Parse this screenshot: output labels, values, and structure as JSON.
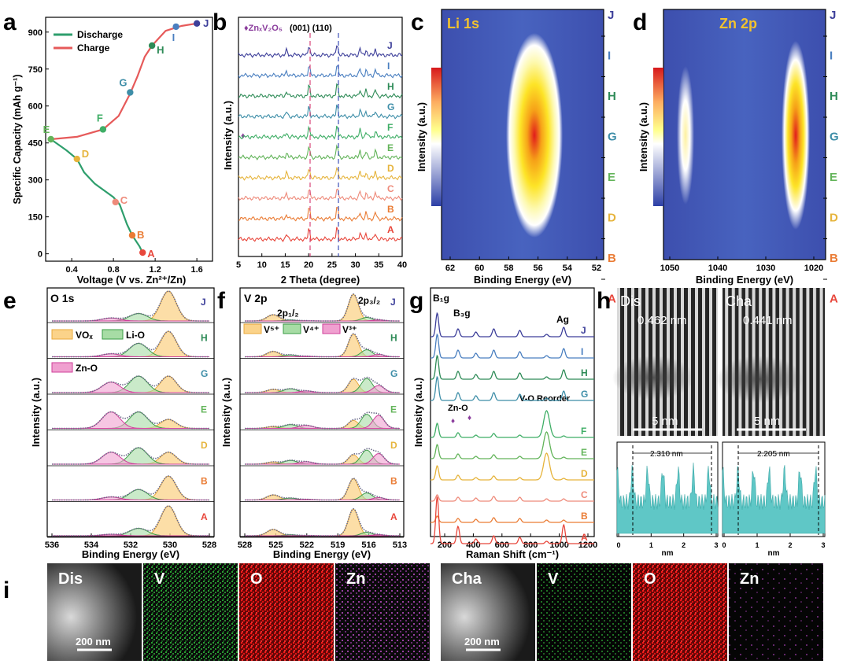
{
  "panels": {
    "a": {
      "letter": "a",
      "ylabel": "Specific Capacity (mAh g⁻¹)",
      "xlabel": "Voltage (V vs. Zn²⁺/Zn)",
      "legend": [
        "Discharge",
        "Charge"
      ],
      "yticks": [
        "0",
        "150",
        "300",
        "450",
        "600",
        "750",
        "900"
      ],
      "xticks": [
        "0.4",
        "0.8",
        "1.2",
        "1.6"
      ]
    },
    "b": {
      "letter": "b",
      "legend": "♦ZnₓV₂O₅",
      "peaks": "(001) (110)",
      "ylabel": "Intensity (a.u.)",
      "xlabel": "2 Theta (degree)",
      "xticks": [
        "5",
        "10",
        "15",
        "20",
        "25",
        "30",
        "35",
        "40"
      ]
    },
    "c": {
      "letter": "c",
      "title": "Li 1s",
      "ylabel": "Intensity (a.u.)",
      "xlabel": "Binding Energy (eV)",
      "xticks": [
        "62",
        "60",
        "58",
        "56",
        "54",
        "52"
      ]
    },
    "d": {
      "letter": "d",
      "title": "Zn 2p",
      "ylabel": "Intensity (a.u.)",
      "xlabel": "Binding Energy (eV)",
      "xticks": [
        "1050",
        "1040",
        "1030",
        "1020"
      ]
    },
    "e": {
      "letter": "e",
      "title": "O 1s",
      "legend": [
        "VOₓ",
        "Li-O",
        "Zn-O"
      ],
      "ylabel": "Intensity (a.u.)",
      "xlabel": "Binding Energy (eV)",
      "xticks": [
        "536",
        "534",
        "532",
        "530",
        "528"
      ]
    },
    "f": {
      "letter": "f",
      "title": "V 2p",
      "sub1": "2p₁/₂",
      "sub2": "2p₃/₂",
      "legend": [
        "V⁵⁺",
        "V⁴⁺",
        "V³⁺"
      ],
      "ylabel": "Intensity (a.u.)",
      "xlabel": "Binding Energy (eV)",
      "xticks": [
        "528",
        "525",
        "522",
        "519",
        "516",
        "513"
      ]
    },
    "g": {
      "letter": "g",
      "peak1": "B₁g",
      "peak2": "B₃g",
      "peak3": "Ag",
      "znoLabel": "Zn-O",
      "voLabel": "V-O Reorder",
      "ylabel": "Intensity (a.u.)",
      "xlabel": "Raman Shift (cm⁻¹)",
      "xticks": [
        "200",
        "400",
        "600",
        "800",
        "1000",
        "1200"
      ]
    },
    "h": {
      "letter": "h",
      "dis": "Dis",
      "cha": "Cha",
      "dspacing1": "0.462 nm",
      "dspacing2": "0.441 nm",
      "scale": "5 nm",
      "profile1": "2.310 nm",
      "profile2": "2.205 nm",
      "xlabel": "nm",
      "xticks": [
        "0",
        "1",
        "2",
        "3"
      ]
    },
    "i": {
      "letter": "i",
      "tiles": [
        "Dis",
        "V",
        "O",
        "Zn",
        "Cha",
        "V",
        "O",
        "Zn"
      ],
      "scale": "200 nm"
    }
  },
  "states": [
    "A",
    "B",
    "D",
    "E",
    "G",
    "H",
    "I",
    "J"
  ],
  "statesE": [
    "J",
    "H",
    "G",
    "E",
    "D",
    "B",
    "A"
  ],
  "statesG": [
    "J",
    "I",
    "H",
    "G",
    "F",
    "E",
    "D",
    "C",
    "B",
    "A"
  ],
  "statesB": [
    "J",
    "I",
    "H",
    "G",
    "F",
    "E",
    "D",
    "C",
    "B",
    "A"
  ],
  "stateColors": {
    "A": "#e8473c",
    "B": "#ea7c35",
    "C": "#ee8a7a",
    "D": "#e6b43c",
    "E": "#63b45a",
    "F": "#3fae66",
    "G": "#3e8ea8",
    "H": "#2e8b57",
    "I": "#4a7fc0",
    "J": "#3d3f9a"
  },
  "chart_data": [
    {
      "type": "line",
      "title": "a",
      "xlabel": "Voltage (V vs. Zn²⁺/Zn)",
      "ylabel": "Specific Capacity (mAh g⁻¹)",
      "xlim": [
        0.15,
        1.75
      ],
      "ylim": [
        -30,
        960
      ],
      "series": [
        {
          "name": "Discharge",
          "points": [
            [
              1.08,
              5
            ],
            [
              1.05,
              30
            ],
            [
              0.98,
              75
            ],
            [
              0.93,
              120
            ],
            [
              0.86,
              200
            ],
            [
              0.8,
              230
            ],
            [
              0.62,
              285
            ],
            [
              0.52,
              330
            ],
            [
              0.45,
              385
            ],
            [
              0.35,
              420
            ],
            [
              0.2,
              465
            ]
          ]
        },
        {
          "name": "Charge",
          "points": [
            [
              0.2,
              465
            ],
            [
              0.45,
              475
            ],
            [
              0.7,
              505
            ],
            [
              0.85,
              560
            ],
            [
              0.96,
              650
            ],
            [
              1.03,
              720
            ],
            [
              1.1,
              800
            ],
            [
              1.17,
              845
            ],
            [
              1.3,
              905
            ],
            [
              1.45,
              925
            ],
            [
              1.6,
              935
            ]
          ]
        }
      ],
      "markers": [
        {
          "label": "A",
          "x": 1.08,
          "y": 5
        },
        {
          "label": "B",
          "x": 0.98,
          "y": 75
        },
        {
          "label": "C",
          "x": 0.82,
          "y": 210
        },
        {
          "label": "D",
          "x": 0.45,
          "y": 385
        },
        {
          "label": "E",
          "x": 0.2,
          "y": 465
        },
        {
          "label": "F",
          "x": 0.7,
          "y": 505
        },
        {
          "label": "G",
          "x": 0.96,
          "y": 655
        },
        {
          "label": "H",
          "x": 1.17,
          "y": 845
        },
        {
          "label": "I",
          "x": 1.4,
          "y": 922
        },
        {
          "label": "J",
          "x": 1.6,
          "y": 935
        }
      ]
    },
    {
      "type": "line",
      "title": "b",
      "xlabel": "2 Theta (degree)",
      "xlim": [
        5,
        40
      ],
      "peak_positions_deg": [
        15.3,
        20.1,
        26.1,
        31.0,
        32.3,
        34.3
      ],
      "reference_lines_deg": [
        20.3,
        26.1
      ]
    },
    {
      "type": "line",
      "title": "g",
      "xlabel": "Raman Shift (cm⁻¹)",
      "xlim": [
        100,
        1200
      ],
      "peaks_cm": [
        145,
        285,
        405,
        525,
        700,
        880,
        995
      ]
    }
  ]
}
